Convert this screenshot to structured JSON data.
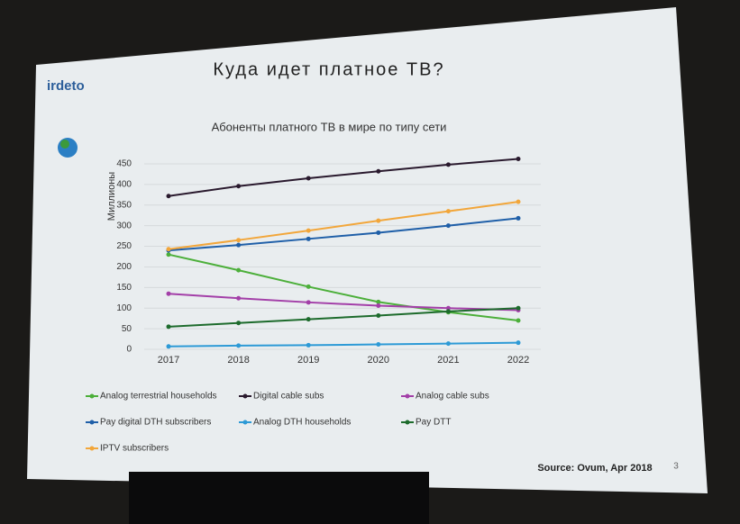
{
  "slide": {
    "logo": "irdeto",
    "title": "Куда идет платное ТВ?",
    "source": "Source: Ovum, Apr 2018",
    "page_number": "3"
  },
  "chart_data": {
    "type": "line",
    "title": "Абоненты платного ТВ в мире по типу сети",
    "y_label": "Миллионы",
    "categories": [
      "2017",
      "2018",
      "2019",
      "2020",
      "2021",
      "2022"
    ],
    "ylim": [
      0,
      450
    ],
    "yticks": [
      0,
      50,
      100,
      150,
      200,
      250,
      300,
      350,
      400,
      450
    ],
    "grid": true,
    "legend": "bottom",
    "series": [
      {
        "name": "Analog terrestrial households",
        "color": "#4caf3a",
        "values": [
          230,
          192,
          152,
          115,
          90,
          70
        ]
      },
      {
        "name": "Digital cable subs",
        "color": "#2a1a2e",
        "values": [
          372,
          396,
          415,
          432,
          448,
          462
        ]
      },
      {
        "name": "Analog cable subs",
        "color": "#a33fa8",
        "values": [
          135,
          124,
          114,
          106,
          100,
          95
        ]
      },
      {
        "name": "Pay digital DTH subscribers",
        "color": "#1f5fa8",
        "values": [
          240,
          253,
          268,
          283,
          300,
          318
        ]
      },
      {
        "name": "Analog DTH households",
        "color": "#2d9ad6",
        "values": [
          7,
          9,
          10,
          12,
          14,
          16
        ]
      },
      {
        "name": "Pay DTT",
        "color": "#1d6b2c",
        "values": [
          55,
          64,
          73,
          82,
          92,
          100
        ]
      },
      {
        "name": "IPTV subscribers",
        "color": "#f2a63a",
        "values": [
          243,
          265,
          288,
          312,
          335,
          358
        ]
      }
    ]
  }
}
